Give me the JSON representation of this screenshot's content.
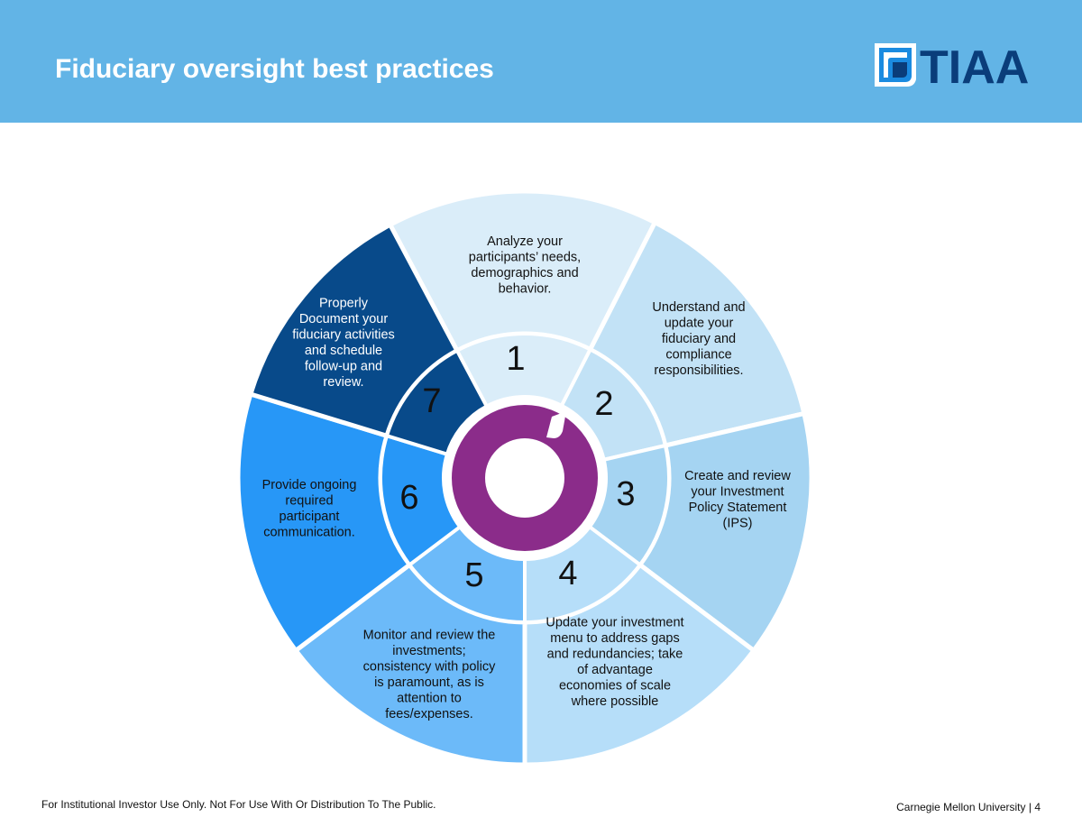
{
  "header": {
    "title": "Fiduciary oversight best practices",
    "background_color": "#62b4e6",
    "logo": {
      "icon": "tiaa-logo-icon",
      "text": "TIAA",
      "color": "#0a3d7a"
    }
  },
  "wheel": {
    "center_ring_color": "#8b2c8a",
    "center_icon": "circular-arrow-icon",
    "segments": [
      {
        "number": "1",
        "lines": [
          "Analyze your",
          "participants’ needs,",
          "demographics and",
          "behavior."
        ],
        "outer_color": "#daedf9",
        "inner_color": "#daedf9",
        "text_color": "#111111"
      },
      {
        "number": "2",
        "lines": [
          "Understand and",
          "update your",
          "fiduciary and",
          "compliance",
          "responsibilities."
        ],
        "outer_color": "#c2e2f6",
        "inner_color": "#c2e2f6",
        "text_color": "#111111"
      },
      {
        "number": "3",
        "lines": [
          "Create and review",
          "your Investment",
          "Policy Statement",
          "(IPS)"
        ],
        "outer_color": "#a5d4f2",
        "inner_color": "#a5d4f2",
        "text_color": "#111111"
      },
      {
        "number": "4",
        "lines": [
          "Update your investment",
          "menu to address gaps",
          "and redundancies; take",
          "of advantage",
          "economies of scale",
          "where possible"
        ],
        "outer_color": "#b6def9",
        "inner_color": "#b6def9",
        "text_color": "#111111"
      },
      {
        "number": "5",
        "lines": [
          "Monitor and review the",
          "investments;",
          "consistency with policy",
          "is paramount, as is",
          "attention to",
          "fees/expenses."
        ],
        "outer_color": "#6cbaf9",
        "inner_color": "#6cbaf9",
        "text_color": "#111111"
      },
      {
        "number": "6",
        "lines": [
          "Provide ongoing",
          "required",
          "participant",
          "communication."
        ],
        "outer_color": "#2797f7",
        "inner_color": "#2797f7",
        "text_color": "#111111"
      },
      {
        "number": "7",
        "lines": [
          "Properly",
          "Document your",
          "fiduciary activities",
          "and schedule",
          "follow-up and",
          "review."
        ],
        "outer_color": "#084a8a",
        "inner_color": "#084a8a",
        "text_color": "#ffffff"
      }
    ]
  },
  "footer": {
    "disclaimer": "For Institutional Investor Use Only. Not For Use With Or Distribution To The Public.",
    "organization": "Carnegie Mellon University",
    "separator": "|",
    "page_number": "4"
  }
}
